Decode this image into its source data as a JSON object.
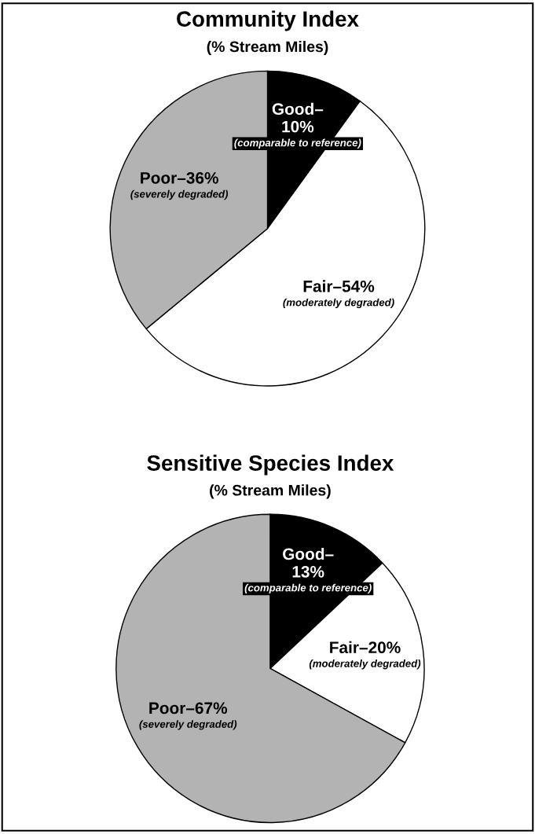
{
  "chart_data": [
    {
      "type": "pie",
      "title": "Community Index",
      "subtitle": "(% Stream Miles)",
      "categories": [
        "Good–\n10%",
        "Fair–54%",
        "Poor–36%"
      ],
      "values": [
        10,
        54,
        36
      ],
      "colors": [
        "#000000",
        "#ffffff",
        "#b3b3b3"
      ],
      "annotations": [
        "(comparable to reference)",
        "(moderately degraded)",
        "(severely degraded)"
      ]
    },
    {
      "type": "pie",
      "title": "Sensitive Species Index",
      "subtitle": "(% Stream Miles)",
      "categories": [
        "Good–\n13%",
        "Fair–20%",
        "Poor–67%"
      ],
      "values": [
        13,
        20,
        67
      ],
      "colors": [
        "#000000",
        "#ffffff",
        "#b3b3b3"
      ],
      "annotations": [
        "(comparable to reference)",
        "(moderately degraded)",
        "(severely degraded)"
      ]
    }
  ]
}
